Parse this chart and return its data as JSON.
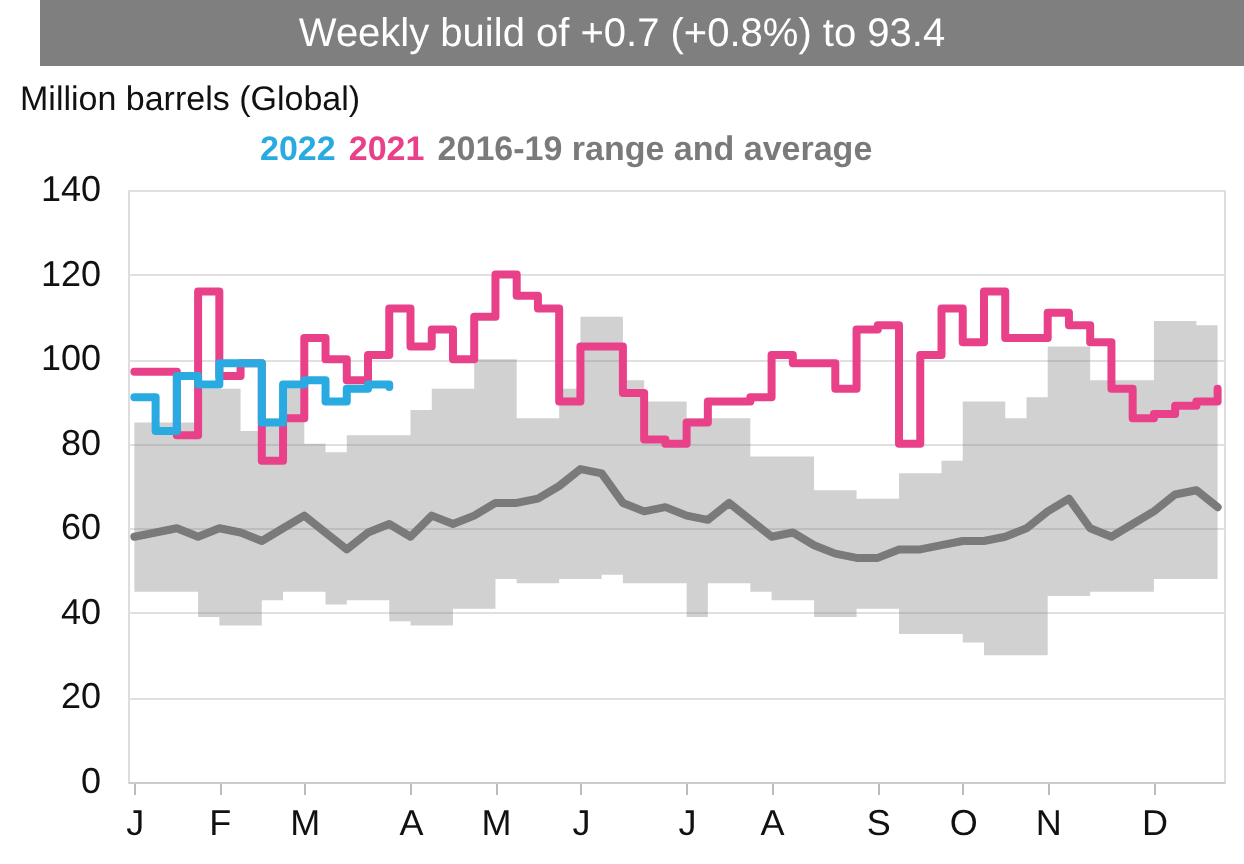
{
  "chart_data": {
    "type": "step",
    "title": "Weekly build of +0.7 (+0.8%) to 93.4",
    "ylabel": "Million barrels (Global)",
    "categories": [
      "J",
      null,
      null,
      null,
      "F",
      null,
      null,
      null,
      "M",
      null,
      null,
      null,
      null,
      "A",
      null,
      null,
      null,
      "M",
      null,
      null,
      null,
      "J",
      null,
      null,
      null,
      null,
      "J",
      null,
      null,
      null,
      "A",
      null,
      null,
      null,
      null,
      "S",
      null,
      null,
      null,
      "O",
      null,
      null,
      null,
      "N",
      null,
      null,
      null,
      null,
      "D",
      null,
      null,
      null
    ],
    "series": [
      {
        "name": "2022",
        "color": "#29abe2",
        "values": [
          91,
          83,
          96,
          94,
          99,
          99,
          85,
          94,
          95,
          90,
          93,
          94,
          93.4,
          null,
          null,
          null,
          null,
          null,
          null,
          null,
          null,
          null,
          null,
          null,
          null,
          null,
          null,
          null,
          null,
          null,
          null,
          null,
          null,
          null,
          null,
          null,
          null,
          null,
          null,
          null,
          null,
          null,
          null,
          null,
          null,
          null,
          null,
          null,
          null,
          null,
          null,
          null
        ]
      },
      {
        "name": "2021",
        "color": "#e8418a",
        "values": [
          97,
          97,
          82,
          116,
          96,
          99,
          76,
          86,
          105,
          100,
          95,
          101,
          112,
          103,
          107,
          100,
          110,
          120,
          115,
          112,
          90,
          103,
          103,
          92,
          81,
          80,
          85,
          90,
          90,
          91,
          101,
          99,
          99,
          93,
          107,
          108,
          80,
          101,
          112,
          104,
          116,
          105,
          105,
          111,
          108,
          104,
          93,
          86,
          87,
          89,
          90,
          93
        ]
      },
      {
        "name": "2016-19 range and average",
        "color": "#7a7a7a",
        "type": "line",
        "values": [
          58,
          59,
          60,
          58,
          60,
          59,
          57,
          60,
          63,
          59,
          55,
          59,
          61,
          58,
          63,
          61,
          63,
          66,
          66,
          67,
          70,
          74,
          73,
          66,
          64,
          65,
          63,
          62,
          66,
          62,
          58,
          59,
          56,
          54,
          53,
          53,
          55,
          55,
          56,
          57,
          57,
          58,
          60,
          64,
          67,
          60,
          58,
          61,
          64,
          68,
          69,
          65
        ],
        "lower": [
          45,
          45,
          45,
          39,
          37,
          37,
          43,
          45,
          45,
          42,
          43,
          43,
          38,
          37,
          37,
          41,
          41,
          48,
          47,
          47,
          48,
          48,
          49,
          47,
          47,
          47,
          39,
          47,
          47,
          45,
          43,
          43,
          39,
          39,
          41,
          41,
          35,
          35,
          35,
          33,
          30,
          30,
          30,
          44,
          44,
          45,
          45,
          45,
          48,
          48,
          48,
          49
        ],
        "upper": [
          85,
          85,
          85,
          93,
          93,
          83,
          86,
          93,
          80,
          78,
          82,
          82,
          82,
          88,
          93,
          93,
          100,
          100,
          86,
          86,
          93,
          110,
          110,
          95,
          90,
          90,
          86,
          86,
          86,
          77,
          77,
          77,
          69,
          69,
          67,
          67,
          73,
          73,
          76,
          90,
          90,
          86,
          91,
          103,
          103,
          95,
          95,
          95,
          109,
          109,
          108,
          83
        ]
      }
    ],
    "ylim": [
      0,
      140
    ],
    "yticks": [
      0,
      20,
      40,
      60,
      80,
      100,
      120,
      140
    ],
    "grid": "y",
    "legend": "top"
  }
}
